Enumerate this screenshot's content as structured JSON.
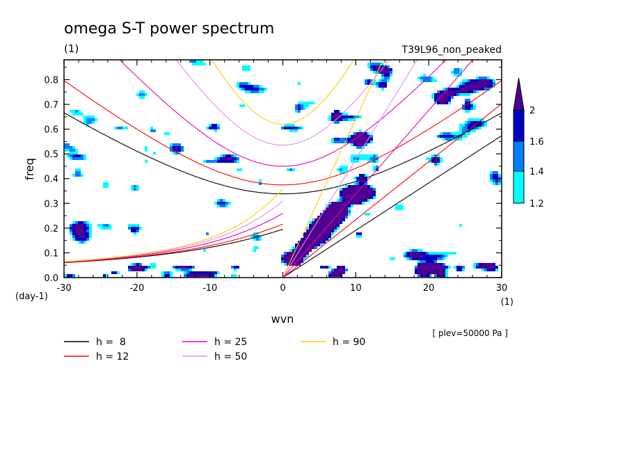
{
  "chart_data": {
    "type": "heatmap",
    "title": "omega S-T power spectrum",
    "subtitle_left": "(1)",
    "subtitle_right": "T39L96_non_peaked",
    "xlabel": "wvn",
    "ylabel": "freq",
    "x_unit": "(1)",
    "y_unit": "(day-1)",
    "xlim": [
      -30,
      30
    ],
    "ylim": [
      0,
      0.88
    ],
    "x_ticks": [
      -30,
      -20,
      -10,
      0,
      10,
      20,
      30
    ],
    "y_ticks": [
      0.0,
      0.1,
      0.2,
      0.3,
      0.4,
      0.5,
      0.6,
      0.7,
      0.8
    ],
    "x_tick_labels": [
      "-30",
      "-20",
      "-10",
      "0",
      "10",
      "20",
      "30"
    ],
    "y_tick_labels": [
      "0.0",
      "0.1",
      "0.2",
      "0.3",
      "0.4",
      "0.5",
      "0.6",
      "0.7",
      "0.8"
    ],
    "annotation": "[ plev=50000 Pa ]",
    "colorbar": {
      "levels": [
        "1.2",
        "1.4",
        "1.6",
        "2"
      ],
      "colors": [
        "#00ffff",
        "#0080ff",
        "#0000c0",
        "#500090"
      ]
    },
    "dispersion_curves": [
      {
        "label": "h =  8",
        "h": 8,
        "color": "#000000"
      },
      {
        "label": "h = 12",
        "h": 12,
        "color": "#ff0000"
      },
      {
        "label": "h = 25",
        "h": 25,
        "color": "#e600b4"
      },
      {
        "label": "h = 50",
        "h": 50,
        "color": "#e68ce6"
      },
      {
        "label": "h = 90",
        "h": 90,
        "color": "#ffcc00"
      }
    ]
  }
}
